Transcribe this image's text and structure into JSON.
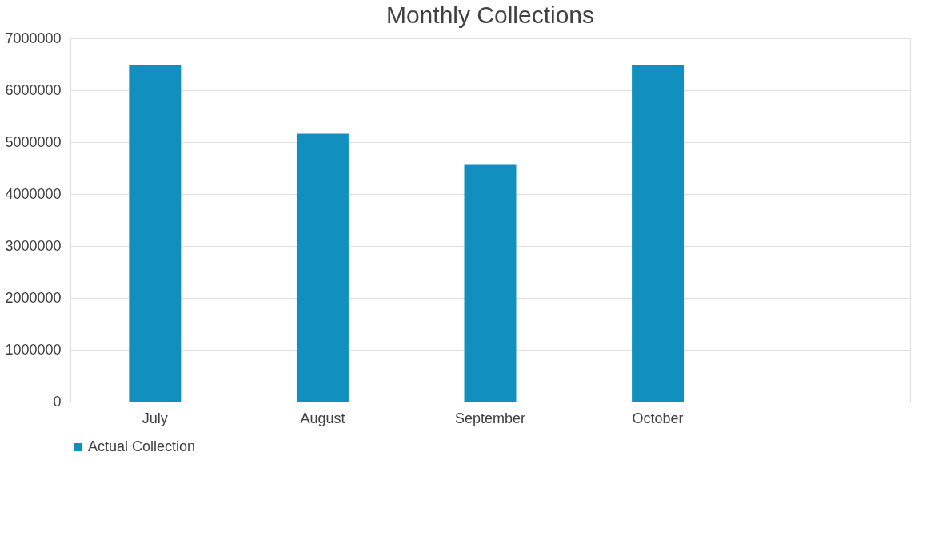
{
  "chart_data": {
    "type": "bar",
    "title": "Monthly Collections",
    "categories": [
      "July",
      "August",
      "September",
      "October",
      null
    ],
    "series": [
      {
        "name": "Actual Collection",
        "color": "#1190c0",
        "values": [
          6480000,
          5160000,
          4560000,
          6490000,
          null
        ]
      }
    ],
    "ylim": [
      0,
      7000000
    ],
    "yticks": [
      0,
      1000000,
      2000000,
      3000000,
      4000000,
      5000000,
      6000000,
      7000000
    ],
    "grid": "y",
    "legend": "bottom"
  }
}
